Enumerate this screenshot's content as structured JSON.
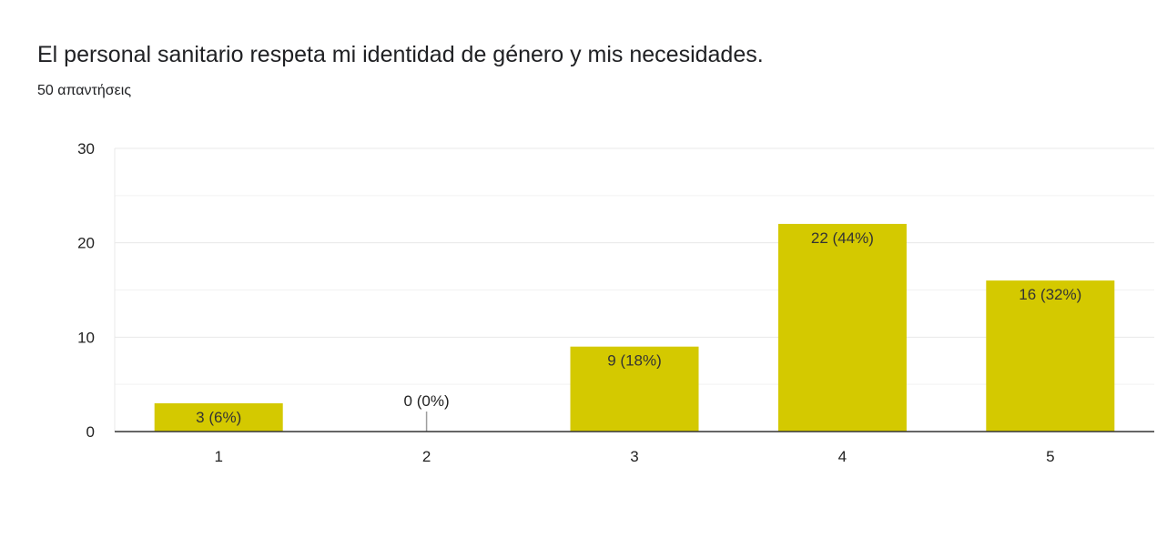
{
  "question": {
    "title": "El personal sanitario respeta mi identidad de género y mis necesidades.",
    "responses": "50 απαντήσεις"
  },
  "colors": {
    "bar": "#d4c900",
    "gridline": "#e8e8e8",
    "minor_gridline": "#f2f2f2",
    "baseline": "#333333",
    "zero_marker": "#9e9e9e",
    "label_text": "#333333",
    "axis_text": "#222222"
  },
  "chart_data": {
    "type": "bar",
    "title": "El personal sanitario respeta mi identidad de género y mis necesidades.",
    "xlabel": "",
    "ylabel": "",
    "categories": [
      "1",
      "2",
      "3",
      "4",
      "5"
    ],
    "values": [
      3,
      0,
      9,
      22,
      16
    ],
    "data_labels": [
      "3 (6%)",
      "0 (0%)",
      "9 (18%)",
      "22 (44%)",
      "16 (32%)"
    ],
    "ylim": [
      0,
      30
    ],
    "yticks": [
      "0",
      "10",
      "20",
      "30"
    ],
    "grid": true,
    "legend": "none"
  }
}
